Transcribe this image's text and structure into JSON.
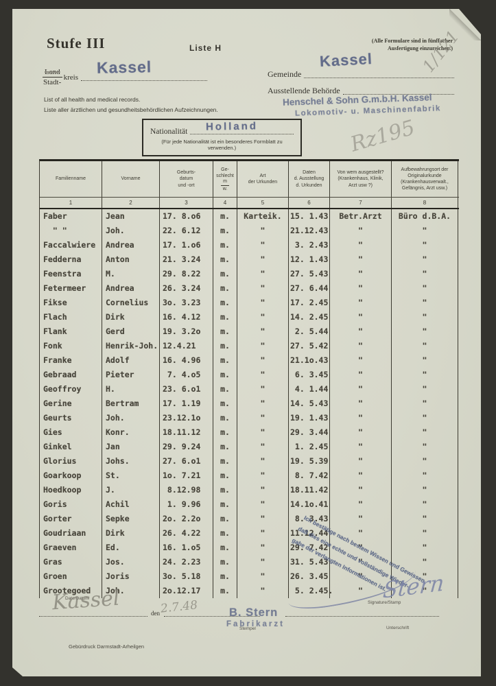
{
  "header": {
    "stufe": "Stufe III",
    "liste": "Liste H",
    "note_line1": "(Alle Formulare sind in fünffacher",
    "note_line2": "Ausfertigung einzureichen.)",
    "corner_pencil": "1/121",
    "land_label": "Land",
    "stadt_label": "Stadt-",
    "kreis_label": "kreis",
    "kreis_stamp": "Kassel",
    "gemeinde_label": "Gemeinde",
    "gemeinde_stamp": "Kassel",
    "behoerde_label": "Ausstellende Behörde",
    "behoerde_stamp_line1": "Henschel & Sohn G.m.b.H. Kassel",
    "behoerde_stamp_line2": "Lokomotiv- u. Maschinenfabrik",
    "english_note": "List of all health and medical records.",
    "german_note": "Liste aller ärztlichen und gesundheitsbehördlichen Aufzeichnungen.",
    "nationality_label": "Nationalität",
    "nationality_stamp": "Holland",
    "nationality_note": "(Für jede Nationalität ist ein besonderes Formblatt zu verwenden.)",
    "pencil_note": "Rz195"
  },
  "table": {
    "columns": [
      {
        "label": "Familienname",
        "num": "1"
      },
      {
        "label": "Vorname",
        "num": "2"
      },
      {
        "label": "Geburts-\ndatum\nund -ort",
        "num": "3"
      },
      {
        "label": "Ge-\nschlecht",
        "m": "m",
        "w": "w.",
        "num": "4"
      },
      {
        "label": "Art\nder Urkunden",
        "num": "5"
      },
      {
        "label": "Daten\nd. Ausstellung\nd. Urkunden",
        "num": "6"
      },
      {
        "label": "Von wem ausgestellt?\n(Krankenhaus, Klinik,\nArzt usw ?)",
        "num": "7"
      },
      {
        "label": "Aufbewahrungsort der\nOriginalurkunde\n(Krankenhausverwalt.,\nGefängnis, Arzt usw.)",
        "num": "8"
      }
    ],
    "rows": [
      [
        "Faber",
        "Jean",
        "17. 8.o6",
        "m.",
        "Karteik.",
        "15. 1.43",
        "Betr.Arzt",
        "Büro d.B.A."
      ],
      [
        "  \" \"",
        "Joh.",
        "22. 6.12",
        "m.",
        "\"",
        "21.12.43",
        "\"",
        "\""
      ],
      [
        "Faccalwiere",
        "Andrea",
        "17. 1.o6",
        "m.",
        "\"",
        " 3. 2.43",
        "\"",
        "\""
      ],
      [
        "Fedderna",
        "Anton",
        "21. 3.24",
        "m.",
        "\"",
        "12. 1.43",
        "\"",
        "\""
      ],
      [
        "Feenstra",
        "M.",
        "29. 8.22",
        "m.",
        "\"",
        "27. 5.43",
        "\"",
        "\""
      ],
      [
        "Fetermeer",
        "Andrea",
        "26. 3.24",
        "m.",
        "\"",
        "27. 6.44",
        "\"",
        "\""
      ],
      [
        "Fikse",
        "Cornelius",
        "3o. 3.23",
        "m.",
        "\"",
        "17. 2.45",
        "\"",
        "\""
      ],
      [
        "Flach",
        "Dirk",
        "16. 4.12",
        "m.",
        "\"",
        "14. 2.45",
        "\"",
        "\""
      ],
      [
        "Flank",
        "Gerd",
        "19. 3.2o",
        "m.",
        "\"",
        " 2. 5.44",
        "\"",
        "\""
      ],
      [
        "Fonk",
        "Henrik-Joh.",
        "12.4.21",
        "m.",
        "\"",
        "27. 5.42",
        "\"",
        "\""
      ],
      [
        "Franke",
        "Adolf",
        "16. 4.96",
        "m.",
        "\"",
        "21.1o.43",
        "\"",
        "\""
      ],
      [
        "Gebraad",
        "Pieter",
        " 7. 4.o5",
        "m.",
        "\"",
        " 6. 3.45",
        "\"",
        "\""
      ],
      [
        "Geoffroy",
        "H.",
        "23. 6.o1",
        "m.",
        "\"",
        " 4. 1.44",
        "\"",
        "\""
      ],
      [
        "Gerine",
        "Bertram",
        "17. 1.19",
        "m.",
        "\"",
        "14. 5.43",
        "\"",
        "\""
      ],
      [
        "Geurts",
        "Joh.",
        "23.12.1o",
        "m.",
        "\"",
        "19. 1.43",
        "\"",
        "\""
      ],
      [
        "Gies",
        "Konr.",
        "18.11.12",
        "m.",
        "\"",
        "29. 3.44",
        "\"",
        "\""
      ],
      [
        "Ginkel",
        "Jan",
        "29. 9.24",
        "m.",
        "\"",
        " 1. 2.45",
        "\"",
        "\""
      ],
      [
        "Glorius",
        "Johs.",
        "27. 6.o1",
        "m.",
        "\"",
        "19. 5.39",
        "\"",
        "\""
      ],
      [
        "Goarkoop",
        "St.",
        "1o. 7.21",
        "m.",
        "\"",
        " 8. 7.42",
        "\"",
        "\""
      ],
      [
        "Hoedkoop",
        "J.",
        " 8.12.98",
        "m.",
        "\"",
        "18.11.42",
        "\"",
        "\""
      ],
      [
        "Goris",
        "Achil",
        " 1. 9.96",
        "m.",
        "\"",
        "14.1o.41",
        "\"",
        "\""
      ],
      [
        "Gorter",
        "Sepke",
        "2o. 2.2o",
        "m.",
        "\"",
        " 8. 3.43",
        "\"",
        "\""
      ],
      [
        "Goudriaan",
        "Dirk",
        "26. 4.22",
        "m.",
        "\"",
        "11.12.44",
        "\"",
        "\""
      ],
      [
        "Graeven",
        "Ed.",
        "16. 1.o5",
        "m.",
        "\"",
        "29. 7.42",
        "\"",
        "\""
      ],
      [
        "Gras",
        "Jos.",
        "24. 2.23",
        "m.",
        "\"",
        "31. 5.43",
        "\"",
        "\""
      ],
      [
        "Groen",
        "Joris",
        "3o. 5.18",
        "m.",
        "\"",
        "26. 3.45",
        "\"",
        "\""
      ],
      [
        "Grootegoed",
        "Joh.",
        "2o.12.17",
        "m.",
        "\"",
        " 5. 2.45.",
        "\"",
        "\""
      ]
    ]
  },
  "footer": {
    "certification_line1": "Ich bestätige nach bestem Wissen und Gewissen,",
    "certification_line2": "daß dies eine echte und vollständige Wieder-",
    "certification_line3": "gabe der verlangten Informationen ist.",
    "date_label_small": "Date/Datum",
    "place_handwritten": "Kassel",
    "den_label": "den",
    "date_handwritten": "2.7.48",
    "stamp_name": "B. Stern",
    "stamp_role": "Fabrikarzt",
    "stempel_label": "Stempel",
    "signature_label_small": "Signature/Stamp",
    "unterschrift_label": "Unterschrift",
    "signature_handwritten": "Stern",
    "printer_note": "Gebürdruck  Darmstadt-Arheilgen"
  },
  "colors": {
    "paper": "#d8d9cb",
    "background": "#33322d",
    "typed_ink": "#47443a",
    "stamp_blue": "#586284",
    "pencil_gray": "#918f85",
    "signature_blue": "#7b83a6"
  }
}
